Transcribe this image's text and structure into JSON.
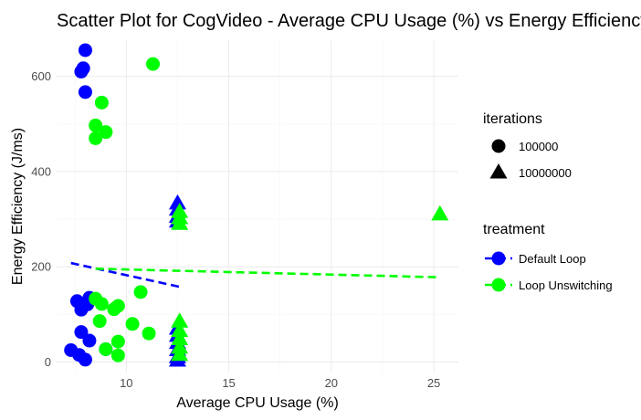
{
  "chart_data": {
    "type": "scatter",
    "title": "Scatter Plot for CogVideo - Average CPU Usage (%) vs Energy Efficiency (J/ms)",
    "xlabel": "Average CPU Usage (%)",
    "ylabel": "Energy Efficiency (J/ms)",
    "xlim": [
      6.6,
      26.2
    ],
    "ylim": [
      -22,
      676
    ],
    "x_ticks": [
      10,
      15,
      20,
      25
    ],
    "y_ticks": [
      0,
      200,
      400,
      600
    ],
    "grid": true,
    "legend_placement": "right",
    "legends": {
      "shape": {
        "title": "iterations",
        "entries": [
          {
            "label": "100000",
            "shape": "circle"
          },
          {
            "label": "10000000",
            "shape": "triangle"
          }
        ]
      },
      "color": {
        "title": "treatment",
        "entries": [
          {
            "label": "Default Loop",
            "color": "#0000ff"
          },
          {
            "label": "Loop Unswitching",
            "color": "#00ff00"
          }
        ]
      }
    },
    "series": [
      {
        "name": "Default Loop",
        "color": "#0000ff",
        "points": [
          {
            "x": 8.0,
            "y": 655,
            "iterations": "100000"
          },
          {
            "x": 7.9,
            "y": 617,
            "iterations": "100000"
          },
          {
            "x": 7.8,
            "y": 610,
            "iterations": "100000"
          },
          {
            "x": 8.0,
            "y": 567,
            "iterations": "100000"
          },
          {
            "x": 8.2,
            "y": 135,
            "iterations": "100000"
          },
          {
            "x": 7.6,
            "y": 128,
            "iterations": "100000"
          },
          {
            "x": 8.1,
            "y": 121,
            "iterations": "100000"
          },
          {
            "x": 7.8,
            "y": 110,
            "iterations": "100000"
          },
          {
            "x": 7.8,
            "y": 63,
            "iterations": "100000"
          },
          {
            "x": 8.2,
            "y": 45,
            "iterations": "100000"
          },
          {
            "x": 7.3,
            "y": 25,
            "iterations": "100000"
          },
          {
            "x": 7.7,
            "y": 15,
            "iterations": "100000"
          },
          {
            "x": 8.0,
            "y": 5,
            "iterations": "100000"
          },
          {
            "x": 9.0,
            "y": 27,
            "iterations": "100000"
          },
          {
            "x": 12.5,
            "y": 333,
            "iterations": "10000000"
          },
          {
            "x": 12.5,
            "y": 320,
            "iterations": "10000000"
          },
          {
            "x": 12.5,
            "y": 305,
            "iterations": "10000000"
          },
          {
            "x": 12.5,
            "y": 295,
            "iterations": "10000000"
          },
          {
            "x": 12.5,
            "y": 70,
            "iterations": "10000000"
          },
          {
            "x": 12.5,
            "y": 55,
            "iterations": "10000000"
          },
          {
            "x": 12.5,
            "y": 40,
            "iterations": "10000000"
          },
          {
            "x": 12.5,
            "y": 25,
            "iterations": "10000000"
          },
          {
            "x": 12.5,
            "y": 10,
            "iterations": "10000000"
          },
          {
            "x": 12.5,
            "y": 3,
            "iterations": "10000000"
          }
        ]
      },
      {
        "name": "Loop Unswitching",
        "color": "#00ff00",
        "points": [
          {
            "x": 11.3,
            "y": 626,
            "iterations": "100000"
          },
          {
            "x": 8.8,
            "y": 545,
            "iterations": "100000"
          },
          {
            "x": 8.5,
            "y": 497,
            "iterations": "100000"
          },
          {
            "x": 9.0,
            "y": 483,
            "iterations": "100000"
          },
          {
            "x": 8.5,
            "y": 470,
            "iterations": "100000"
          },
          {
            "x": 10.7,
            "y": 147,
            "iterations": "100000"
          },
          {
            "x": 8.5,
            "y": 133,
            "iterations": "100000"
          },
          {
            "x": 8.8,
            "y": 122,
            "iterations": "100000"
          },
          {
            "x": 9.6,
            "y": 118,
            "iterations": "100000"
          },
          {
            "x": 9.4,
            "y": 111,
            "iterations": "100000"
          },
          {
            "x": 8.7,
            "y": 86,
            "iterations": "100000"
          },
          {
            "x": 10.3,
            "y": 80,
            "iterations": "100000"
          },
          {
            "x": 11.1,
            "y": 60,
            "iterations": "100000"
          },
          {
            "x": 9.6,
            "y": 43,
            "iterations": "100000"
          },
          {
            "x": 9.0,
            "y": 27,
            "iterations": "100000"
          },
          {
            "x": 9.6,
            "y": 14,
            "iterations": "100000"
          },
          {
            "x": 25.3,
            "y": 310,
            "iterations": "10000000"
          },
          {
            "x": 12.6,
            "y": 315,
            "iterations": "10000000"
          },
          {
            "x": 12.6,
            "y": 302,
            "iterations": "10000000"
          },
          {
            "x": 12.6,
            "y": 290,
            "iterations": "10000000"
          },
          {
            "x": 12.6,
            "y": 85,
            "iterations": "10000000"
          },
          {
            "x": 12.6,
            "y": 65,
            "iterations": "10000000"
          },
          {
            "x": 12.6,
            "y": 48,
            "iterations": "10000000"
          },
          {
            "x": 12.6,
            "y": 30,
            "iterations": "10000000"
          },
          {
            "x": 12.6,
            "y": 15,
            "iterations": "10000000"
          }
        ]
      }
    ],
    "trend_lines": [
      {
        "series": "Default Loop",
        "color": "#0000ff",
        "style": "dashed",
        "x": [
          7.3,
          12.6
        ],
        "y": [
          208,
          158
        ]
      },
      {
        "series": "Loop Unswitching",
        "color": "#00ff00",
        "style": "dashed",
        "x": [
          8.5,
          25.3
        ],
        "y": [
          196,
          178
        ]
      }
    ]
  }
}
